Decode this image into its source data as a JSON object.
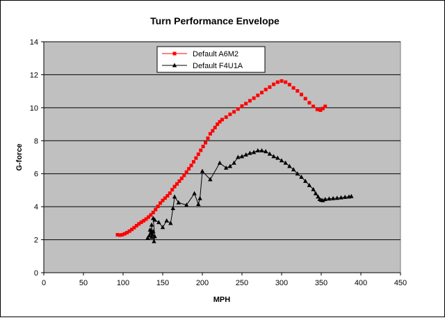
{
  "chart_data": {
    "type": "line",
    "title": "Turn Performance Envelope",
    "xlabel": "MPH",
    "ylabel": "G-force",
    "xlim": [
      0,
      450
    ],
    "ylim": [
      0,
      14
    ],
    "xticks": [
      0,
      50,
      100,
      150,
      200,
      250,
      300,
      350,
      400,
      450
    ],
    "yticks": [
      0,
      2,
      4,
      6,
      8,
      10,
      12,
      14
    ],
    "grid": true,
    "legend": "top-left",
    "colors": {
      "plot_bg": "#c0c0c0",
      "gridline": "#000000",
      "series_a6m2": "#ff0000",
      "series_f4u1a": "#000000"
    },
    "series": [
      {
        "name": "Default A6M2",
        "color": "#ff0000",
        "marker": "square",
        "line": false,
        "points": [
          [
            93,
            2.3
          ],
          [
            96,
            2.28
          ],
          [
            99,
            2.3
          ],
          [
            102,
            2.36
          ],
          [
            105,
            2.43
          ],
          [
            108,
            2.52
          ],
          [
            111,
            2.62
          ],
          [
            114,
            2.73
          ],
          [
            117,
            2.85
          ],
          [
            120,
            2.96
          ],
          [
            123,
            3.06
          ],
          [
            126,
            3.15
          ],
          [
            129,
            3.25
          ],
          [
            132,
            3.37
          ],
          [
            135,
            3.5
          ],
          [
            138,
            3.65
          ],
          [
            141,
            3.83
          ],
          [
            144,
            4.02
          ],
          [
            147,
            4.22
          ],
          [
            150,
            4.38
          ],
          [
            153,
            4.52
          ],
          [
            156,
            4.66
          ],
          [
            159,
            4.82
          ],
          [
            162,
            5.03
          ],
          [
            165,
            5.22
          ],
          [
            168,
            5.38
          ],
          [
            171,
            5.55
          ],
          [
            174,
            5.72
          ],
          [
            177,
            5.9
          ],
          [
            180,
            6.1
          ],
          [
            183,
            6.3
          ],
          [
            186,
            6.5
          ],
          [
            189,
            6.72
          ],
          [
            192,
            6.95
          ],
          [
            195,
            7.18
          ],
          [
            198,
            7.42
          ],
          [
            201,
            7.65
          ],
          [
            204,
            7.88
          ],
          [
            207,
            8.15
          ],
          [
            210,
            8.42
          ],
          [
            213,
            8.6
          ],
          [
            216,
            8.8
          ],
          [
            219,
            9.0
          ],
          [
            222,
            9.15
          ],
          [
            225,
            9.28
          ],
          [
            230,
            9.43
          ],
          [
            235,
            9.6
          ],
          [
            240,
            9.75
          ],
          [
            245,
            9.92
          ],
          [
            250,
            10.1
          ],
          [
            255,
            10.25
          ],
          [
            260,
            10.42
          ],
          [
            265,
            10.58
          ],
          [
            270,
            10.75
          ],
          [
            275,
            10.92
          ],
          [
            280,
            11.1
          ],
          [
            285,
            11.25
          ],
          [
            290,
            11.42
          ],
          [
            295,
            11.55
          ],
          [
            300,
            11.62
          ],
          [
            305,
            11.55
          ],
          [
            310,
            11.4
          ],
          [
            315,
            11.2
          ],
          [
            320,
            11.02
          ],
          [
            325,
            10.8
          ],
          [
            330,
            10.55
          ],
          [
            335,
            10.3
          ],
          [
            340,
            10.08
          ],
          [
            345,
            9.9
          ],
          [
            349,
            9.85
          ],
          [
            352,
            9.95
          ],
          [
            355,
            10.08
          ]
        ]
      },
      {
        "name": "Default F4U1A",
        "color": "#000000",
        "marker": "triangle",
        "line": true,
        "points": [
          [
            131,
            2.1
          ],
          [
            133,
            2.25
          ],
          [
            134,
            2.6
          ],
          [
            135,
            2.4
          ],
          [
            136,
            2.15
          ],
          [
            136,
            2.9
          ],
          [
            137,
            2.3
          ],
          [
            138,
            2.5
          ],
          [
            139,
            1.9
          ],
          [
            140,
            2.2
          ],
          [
            138,
            3.3
          ],
          [
            140,
            3.2
          ],
          [
            145,
            3.05
          ],
          [
            150,
            2.75
          ],
          [
            155,
            3.15
          ],
          [
            160,
            3.0
          ],
          [
            163,
            3.9
          ],
          [
            165,
            4.6
          ],
          [
            170,
            4.25
          ],
          [
            180,
            4.1
          ],
          [
            190,
            4.8
          ],
          [
            195,
            4.15
          ],
          [
            197,
            4.5
          ],
          [
            200,
            6.15
          ],
          [
            210,
            5.65
          ],
          [
            222,
            6.65
          ],
          [
            230,
            6.35
          ],
          [
            235,
            6.45
          ],
          [
            240,
            6.65
          ],
          [
            245,
            7.0
          ],
          [
            250,
            7.05
          ],
          [
            255,
            7.15
          ],
          [
            260,
            7.25
          ],
          [
            265,
            7.3
          ],
          [
            270,
            7.4
          ],
          [
            275,
            7.4
          ],
          [
            280,
            7.35
          ],
          [
            285,
            7.2
          ],
          [
            290,
            7.05
          ],
          [
            295,
            6.95
          ],
          [
            300,
            6.8
          ],
          [
            305,
            6.65
          ],
          [
            310,
            6.45
          ],
          [
            315,
            6.25
          ],
          [
            320,
            6.0
          ],
          [
            325,
            5.8
          ],
          [
            330,
            5.55
          ],
          [
            335,
            5.3
          ],
          [
            340,
            5.05
          ],
          [
            343,
            4.8
          ],
          [
            346,
            4.6
          ],
          [
            348,
            4.45
          ],
          [
            350,
            4.4
          ],
          [
            352,
            4.38
          ],
          [
            355,
            4.45
          ],
          [
            360,
            4.48
          ],
          [
            365,
            4.5
          ],
          [
            370,
            4.52
          ],
          [
            375,
            4.55
          ],
          [
            380,
            4.58
          ],
          [
            385,
            4.6
          ],
          [
            388,
            4.63
          ]
        ]
      }
    ]
  }
}
